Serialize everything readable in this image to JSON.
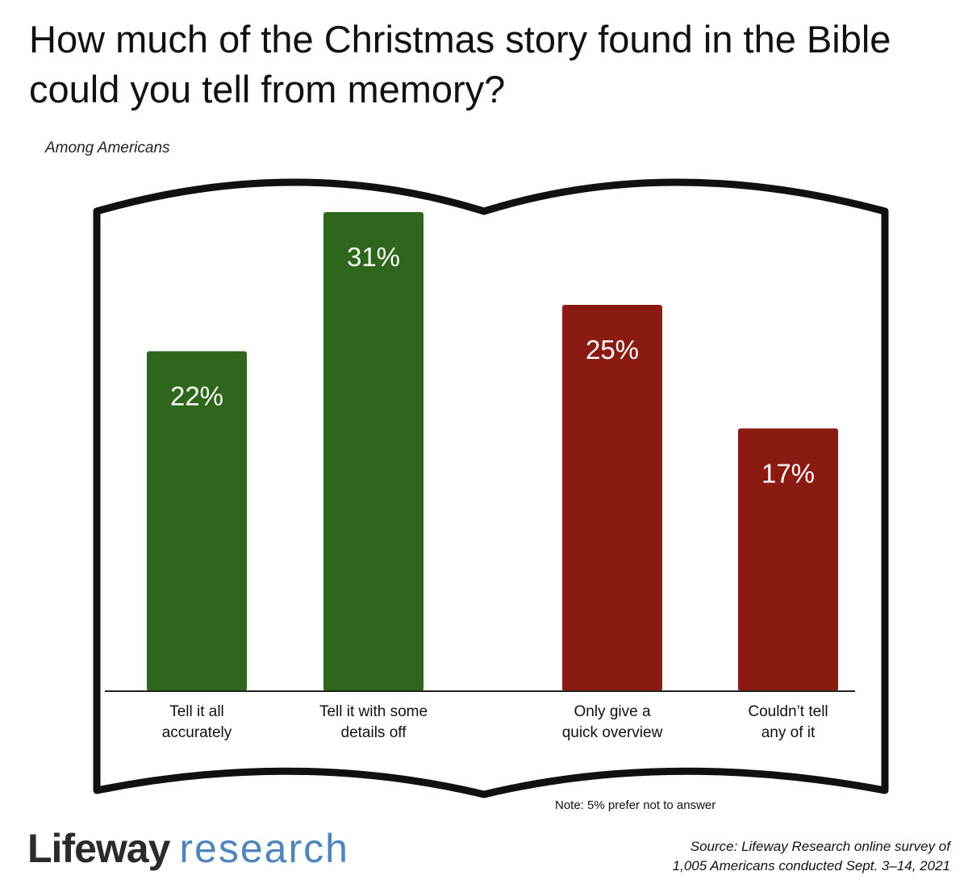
{
  "title": "How much of the Christmas story found in the Bible could you tell from memory?",
  "subtitle": "Among Americans",
  "note": "Note: 5% prefer not to answer",
  "logo": {
    "part1": "Lifeway",
    "part2": "research"
  },
  "source": {
    "line1": "Source: Lifeway Research online survey of",
    "line2": "1,005 Americans conducted Sept. 3–14, 2021"
  },
  "colors": {
    "green": "#2e661c",
    "red": "#8b1a12",
    "outline": "#111111"
  },
  "chart_data": {
    "type": "bar",
    "categories": [
      "Tell it all accurately",
      "Tell it with some details off",
      "Only give a quick overview",
      "Couldn't tell any of it"
    ],
    "category_lines": [
      [
        "Tell it all",
        "accurately"
      ],
      [
        "Tell it with some",
        "details off"
      ],
      [
        "Only give a",
        "quick overview"
      ],
      [
        "Couldn’t tell",
        "any of it"
      ]
    ],
    "values": [
      22,
      31,
      25,
      17
    ],
    "value_labels": [
      "22%",
      "31%",
      "25%",
      "17%"
    ],
    "bar_colors": [
      "#2e661c",
      "#2e661c",
      "#8b1a12",
      "#8b1a12"
    ],
    "ylim": [
      0,
      31
    ],
    "grid": false,
    "legend": "none"
  }
}
